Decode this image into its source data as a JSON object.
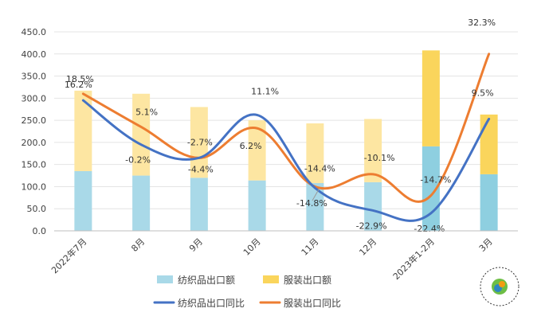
{
  "chart_data": {
    "type": "bar+line",
    "categories": [
      "2022年7月",
      "8月",
      "9月",
      "10月",
      "11月",
      "12月",
      "2023年1-2月",
      "3月"
    ],
    "ylim": [
      0,
      450
    ],
    "yticks": [
      "0.0",
      "50.0",
      "100.0",
      "150.0",
      "200.0",
      "250.0",
      "300.0",
      "350.0",
      "400.0",
      "450.0"
    ],
    "grid": true,
    "legend_position": "bottom",
    "bar_series": [
      {
        "name": "纺织品出口额",
        "values": [
          135,
          125,
          120,
          114,
          108,
          110,
          191,
          128
        ],
        "color": "#A9D9E8",
        "color_emphasis": "#8ECFE0"
      },
      {
        "name": "服装出口额",
        "values": [
          182,
          185,
          160,
          136,
          135,
          143,
          217,
          135
        ],
        "color": "#FDE6A2",
        "color_emphasis": "#FAD55C"
      }
    ],
    "emphasized_categories": [
      "2023年1-2月",
      "3月"
    ],
    "line_series": [
      {
        "name": "纺织品出口同比",
        "color": "#4472C4",
        "values": [
          16.2,
          -0.2,
          -4.4,
          11.1,
          -14.8,
          -22.9,
          -22.4,
          9.5
        ],
        "y_positions": [
          295,
          195,
          165,
          262,
          97,
          46,
          40,
          253
        ],
        "labels": [
          "16.2%",
          "-0.2%",
          "-4.4%",
          "11.1%",
          "-14.8%",
          "-22.9%",
          "-22.4%",
          "9.5%"
        ]
      },
      {
        "name": "服装出口同比",
        "color": "#ED7D31",
        "values": [
          18.5,
          5.1,
          -2.7,
          6.2,
          -14.4,
          -10.1,
          -14.7,
          32.3
        ],
        "y_positions": [
          310,
          235,
          165,
          232,
          100,
          128,
          80,
          400
        ],
        "labels": [
          "18.5%",
          "5.1%",
          "-2.7%",
          "6.2%",
          "-14.4%",
          "-10.1%",
          "-14.7%",
          "32.3%"
        ]
      }
    ]
  }
}
